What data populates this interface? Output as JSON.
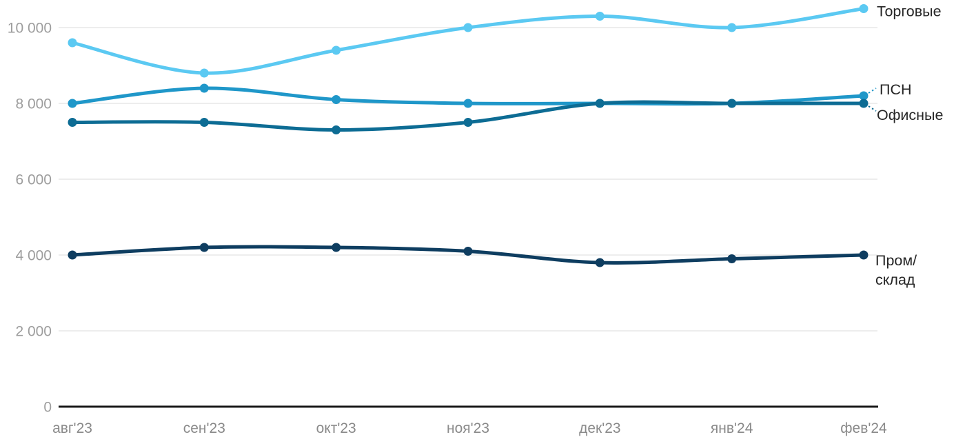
{
  "chart_data": {
    "type": "line",
    "title": "",
    "xlabel": "",
    "ylabel": "",
    "categories": [
      "авг'23",
      "сен'23",
      "окт'23",
      "ноя'23",
      "дек'23",
      "янв'24",
      "фев'24"
    ],
    "series": [
      {
        "name": "Торговые",
        "color": "#5BC9F2",
        "values": [
          9600,
          8800,
          9400,
          10000,
          10300,
          10000,
          10500
        ],
        "label_lines": [
          "Торговые"
        ]
      },
      {
        "name": "ПСН",
        "color": "#1F97C9",
        "values": [
          8000,
          8400,
          8100,
          8000,
          8000,
          8000,
          8200
        ],
        "label_lines": [
          "ПСН"
        ]
      },
      {
        "name": "Офисные",
        "color": "#0D6C94",
        "values": [
          7500,
          7500,
          7300,
          7500,
          8000,
          8000,
          8000
        ],
        "label_lines": [
          "Офисные"
        ]
      },
      {
        "name": "Пром/склад",
        "color": "#0E3D60",
        "values": [
          4000,
          4200,
          4200,
          4100,
          3800,
          3900,
          4000
        ],
        "label_lines": [
          "Пром/",
          "склад"
        ]
      }
    ],
    "y_axis": {
      "min": 0,
      "max": 11000,
      "ticks": [
        {
          "value": 0,
          "label": "0"
        },
        {
          "value": 2000,
          "label": "2 000"
        },
        {
          "value": 4000,
          "label": "4 000"
        },
        {
          "value": 6000,
          "label": "6 000"
        },
        {
          "value": 8000,
          "label": "8 000"
        },
        {
          "value": 10000,
          "label": "10 000"
        }
      ]
    },
    "grid": "horizontal",
    "legend_position": "right-end-labels",
    "colors": {
      "background": "#ffffff",
      "axis_line": "#1a1a1a",
      "gridline": "#e7e7e7",
      "y_tick_label": "#9d9d9d",
      "x_tick_label": "#8a8a8a",
      "series_label": "#262626"
    }
  }
}
